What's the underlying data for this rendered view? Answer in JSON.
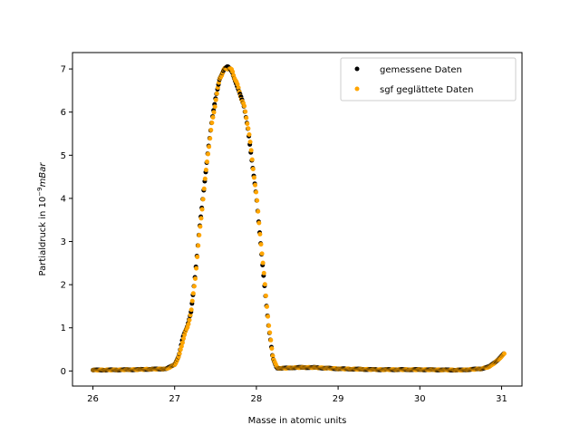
{
  "chart_data": {
    "type": "scatter",
    "xlabel": "Masse in atomic units",
    "ylabel_prefix": "Partialdruck in 10",
    "ylabel_exp": "−9",
    "ylabel_unit": "mBar",
    "xlim": [
      25.75,
      31.25
    ],
    "ylim": [
      -0.35,
      7.38
    ],
    "xticks": [
      26,
      27,
      28,
      29,
      30,
      31
    ],
    "yticks": [
      0,
      1,
      2,
      3,
      4,
      5,
      6,
      7
    ],
    "legend_position": "top-right",
    "grid": false,
    "series": [
      {
        "name": "gemessene Daten",
        "color": "#000000"
      },
      {
        "name": "sgf geglättete Daten",
        "color": "#ffa500"
      }
    ],
    "x_range": [
      26.0,
      31.03
    ],
    "curve": [
      [
        26.0,
        0.02
      ],
      [
        26.5,
        0.03
      ],
      [
        26.9,
        0.05
      ],
      [
        27.0,
        0.15
      ],
      [
        27.05,
        0.35
      ],
      [
        27.1,
        0.75
      ],
      [
        27.15,
        1.0
      ],
      [
        27.2,
        1.4
      ],
      [
        27.25,
        2.2
      ],
      [
        27.3,
        3.2
      ],
      [
        27.35,
        4.1
      ],
      [
        27.4,
        5.0
      ],
      [
        27.45,
        5.7
      ],
      [
        27.5,
        6.3
      ],
      [
        27.55,
        6.8
      ],
      [
        27.6,
        6.98
      ],
      [
        27.65,
        7.03
      ],
      [
        27.7,
        6.95
      ],
      [
        27.75,
        6.7
      ],
      [
        27.8,
        6.4
      ],
      [
        27.85,
        6.1
      ],
      [
        27.9,
        5.6
      ],
      [
        27.95,
        4.8
      ],
      [
        28.0,
        4.0
      ],
      [
        28.05,
        3.0
      ],
      [
        28.1,
        2.0
      ],
      [
        28.15,
        1.0
      ],
      [
        28.2,
        0.3
      ],
      [
        28.25,
        0.07
      ],
      [
        28.3,
        0.06
      ],
      [
        28.5,
        0.08
      ],
      [
        28.7,
        0.08
      ],
      [
        29.0,
        0.05
      ],
      [
        29.5,
        0.03
      ],
      [
        30.0,
        0.03
      ],
      [
        30.5,
        0.02
      ],
      [
        30.75,
        0.05
      ],
      [
        30.85,
        0.1
      ],
      [
        30.95,
        0.25
      ],
      [
        31.03,
        0.4
      ]
    ]
  }
}
